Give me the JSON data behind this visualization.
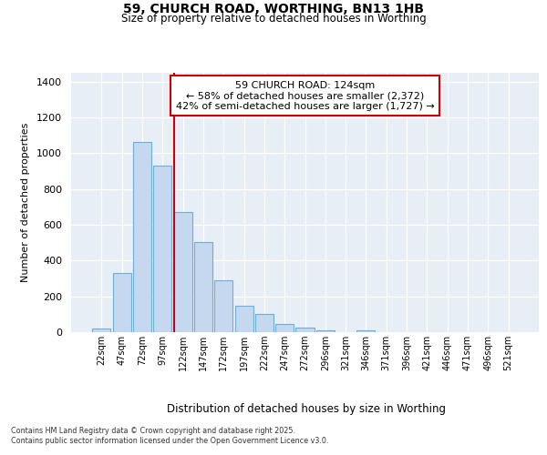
{
  "title1": "59, CHURCH ROAD, WORTHING, BN13 1HB",
  "title2": "Size of property relative to detached houses in Worthing",
  "xlabel": "Distribution of detached houses by size in Worthing",
  "ylabel": "Number of detached properties",
  "categories": [
    "22sqm",
    "47sqm",
    "72sqm",
    "97sqm",
    "122sqm",
    "147sqm",
    "172sqm",
    "197sqm",
    "222sqm",
    "247sqm",
    "272sqm",
    "296sqm",
    "321sqm",
    "346sqm",
    "371sqm",
    "396sqm",
    "421sqm",
    "446sqm",
    "471sqm",
    "496sqm",
    "521sqm"
  ],
  "values": [
    20,
    330,
    1065,
    930,
    670,
    505,
    290,
    150,
    100,
    45,
    25,
    12,
    0,
    10,
    0,
    0,
    0,
    0,
    0,
    0,
    0
  ],
  "bar_color": "#c5d8f0",
  "bar_edge_color": "#6baed6",
  "property_line_index": 4,
  "annotation_line1": "59 CHURCH ROAD: 124sqm",
  "annotation_line2": "← 58% of detached houses are smaller (2,372)",
  "annotation_line3": "42% of semi-detached houses are larger (1,727) →",
  "annotation_box_color": "#ffffff",
  "annotation_box_edge": "#cc0000",
  "vline_color": "#cc0000",
  "ylim": [
    0,
    1450
  ],
  "yticks": [
    0,
    200,
    400,
    600,
    800,
    1000,
    1200,
    1400
  ],
  "bg_color": "#e8eef5",
  "footnote1": "Contains HM Land Registry data © Crown copyright and database right 2025.",
  "footnote2": "Contains public sector information licensed under the Open Government Licence v3.0.",
  "bar_width": 0.9
}
